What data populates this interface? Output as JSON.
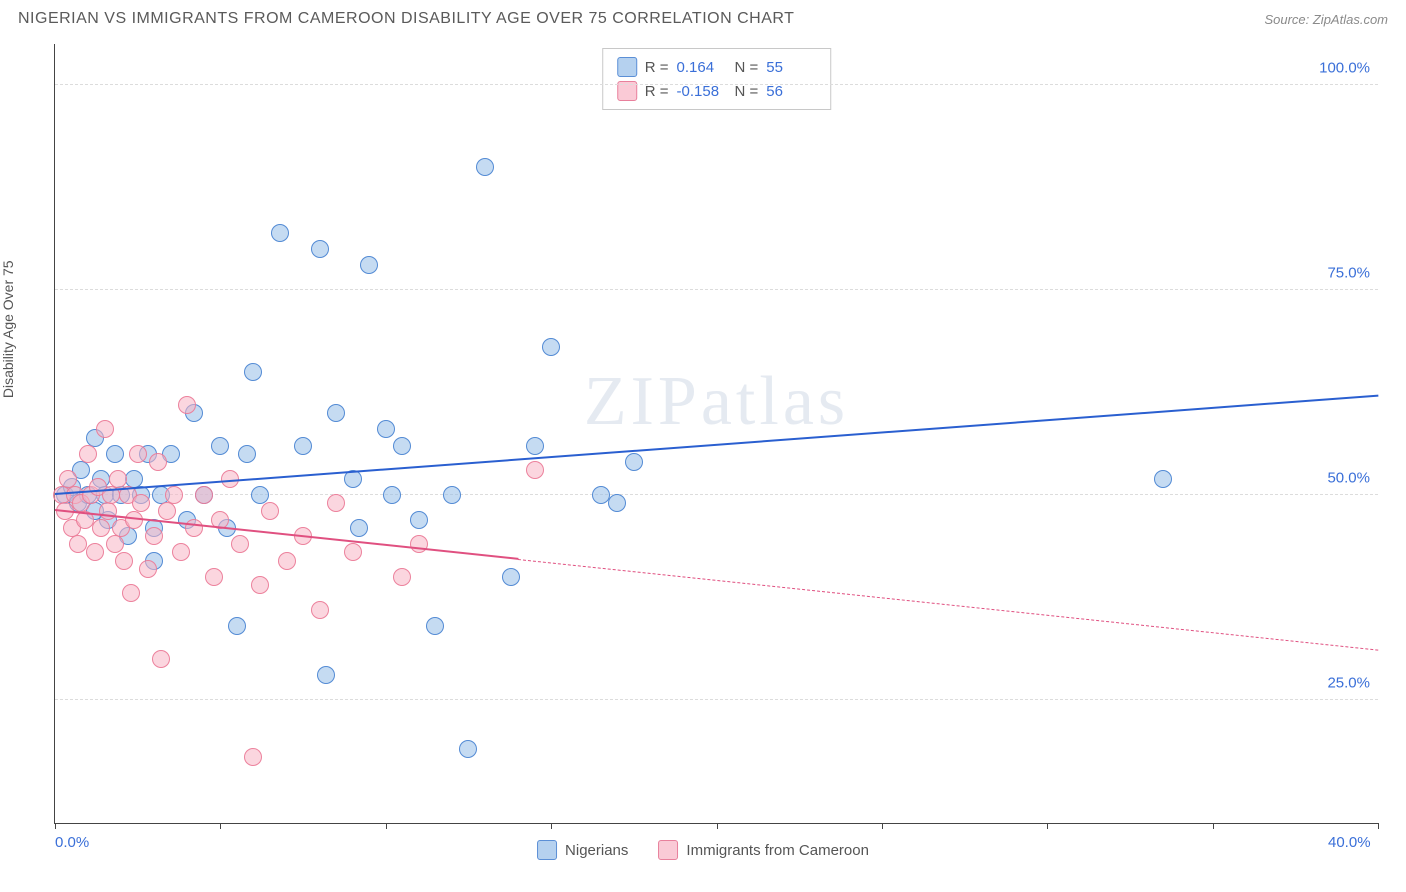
{
  "header": {
    "title": "NIGERIAN VS IMMIGRANTS FROM CAMEROON DISABILITY AGE OVER 75 CORRELATION CHART",
    "source": "Source: ZipAtlas.com"
  },
  "chart": {
    "type": "scatter",
    "ylabel": "Disability Age Over 75",
    "watermark": "ZIPatlas",
    "background_color": "#ffffff",
    "grid_color": "#dcdcdc",
    "axis_color": "#444444",
    "xlim": [
      0,
      40
    ],
    "ylim": [
      10,
      105
    ],
    "xticks": [
      0,
      5,
      10,
      15,
      20,
      25,
      30,
      35,
      40
    ],
    "xtick_labels": {
      "0": "0.0%",
      "40": "40.0%"
    },
    "yticks": [
      25,
      50,
      75,
      100
    ],
    "ytick_labels": [
      "25.0%",
      "50.0%",
      "75.0%",
      "100.0%"
    ],
    "series": [
      {
        "name": "Nigerians",
        "color_fill": "rgba(150,190,232,0.55)",
        "color_stroke": "#5b8fd6",
        "R": "0.164",
        "N": "55",
        "trend": {
          "x1": 0,
          "y1": 50,
          "x2": 40,
          "y2": 62,
          "color": "#2a5fd0",
          "dashed_after_x": null
        },
        "points": [
          [
            0.3,
            50
          ],
          [
            0.5,
            51
          ],
          [
            0.7,
            49
          ],
          [
            0.8,
            53
          ],
          [
            1.0,
            50
          ],
          [
            1.2,
            48
          ],
          [
            1.2,
            57
          ],
          [
            1.4,
            52
          ],
          [
            1.5,
            50
          ],
          [
            1.6,
            47
          ],
          [
            1.8,
            55
          ],
          [
            2.0,
            50
          ],
          [
            2.2,
            45
          ],
          [
            2.4,
            52
          ],
          [
            2.6,
            50
          ],
          [
            2.8,
            55
          ],
          [
            3.0,
            46
          ],
          [
            3.0,
            42
          ],
          [
            3.2,
            50
          ],
          [
            3.5,
            55
          ],
          [
            4.0,
            47
          ],
          [
            4.2,
            60
          ],
          [
            4.5,
            50
          ],
          [
            5.0,
            56
          ],
          [
            5.2,
            46
          ],
          [
            5.5,
            34
          ],
          [
            5.8,
            55
          ],
          [
            6.0,
            65
          ],
          [
            6.2,
            50
          ],
          [
            6.8,
            82
          ],
          [
            7.5,
            56
          ],
          [
            8.0,
            80
          ],
          [
            8.2,
            28
          ],
          [
            8.5,
            60
          ],
          [
            9.0,
            52
          ],
          [
            9.2,
            46
          ],
          [
            9.5,
            78
          ],
          [
            10.0,
            58
          ],
          [
            10.2,
            50
          ],
          [
            10.5,
            56
          ],
          [
            11.0,
            47
          ],
          [
            11.5,
            34
          ],
          [
            12.0,
            50
          ],
          [
            13.0,
            90
          ],
          [
            12.5,
            19
          ],
          [
            13.8,
            40
          ],
          [
            14.5,
            56
          ],
          [
            15.0,
            68
          ],
          [
            16.5,
            50
          ],
          [
            17.5,
            54
          ],
          [
            17.0,
            49
          ],
          [
            33.5,
            52
          ]
        ]
      },
      {
        "name": "Immigrants from Cameroon",
        "color_fill": "rgba(248,180,196,0.55)",
        "color_stroke": "#e8809c",
        "R": "-0.158",
        "N": "56",
        "trend": {
          "x1": 0,
          "y1": 48,
          "x2": 40,
          "y2": 31,
          "color": "#e05080",
          "dashed_after_x": 14
        },
        "points": [
          [
            0.2,
            50
          ],
          [
            0.3,
            48
          ],
          [
            0.4,
            52
          ],
          [
            0.5,
            46
          ],
          [
            0.6,
            50
          ],
          [
            0.7,
            44
          ],
          [
            0.8,
            49
          ],
          [
            0.9,
            47
          ],
          [
            1.0,
            55
          ],
          [
            1.1,
            50
          ],
          [
            1.2,
            43
          ],
          [
            1.3,
            51
          ],
          [
            1.4,
            46
          ],
          [
            1.5,
            58
          ],
          [
            1.6,
            48
          ],
          [
            1.7,
            50
          ],
          [
            1.8,
            44
          ],
          [
            1.9,
            52
          ],
          [
            2.0,
            46
          ],
          [
            2.1,
            42
          ],
          [
            2.2,
            50
          ],
          [
            2.3,
            38
          ],
          [
            2.4,
            47
          ],
          [
            2.5,
            55
          ],
          [
            2.6,
            49
          ],
          [
            2.8,
            41
          ],
          [
            3.0,
            45
          ],
          [
            3.1,
            54
          ],
          [
            3.2,
            30
          ],
          [
            3.4,
            48
          ],
          [
            3.6,
            50
          ],
          [
            3.8,
            43
          ],
          [
            4.0,
            61
          ],
          [
            4.2,
            46
          ],
          [
            4.5,
            50
          ],
          [
            4.8,
            40
          ],
          [
            5.0,
            47
          ],
          [
            5.3,
            52
          ],
          [
            5.6,
            44
          ],
          [
            6.0,
            18
          ],
          [
            6.2,
            39
          ],
          [
            6.5,
            48
          ],
          [
            7.0,
            42
          ],
          [
            7.5,
            45
          ],
          [
            8.0,
            36
          ],
          [
            8.5,
            49
          ],
          [
            9.0,
            43
          ],
          [
            10.5,
            40
          ],
          [
            11.0,
            44
          ],
          [
            14.5,
            53
          ]
        ]
      }
    ],
    "legend_bottom": {
      "series1": "Nigerians",
      "series2": "Immigrants from Cameroon"
    },
    "legend_top_labels": {
      "R": "R =",
      "N": "N ="
    }
  }
}
